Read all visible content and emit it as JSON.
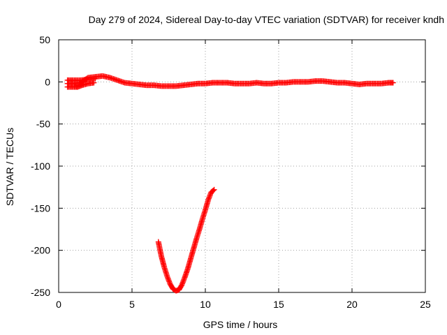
{
  "chart_data": {
    "type": "scatter",
    "title": "Day 279 of 2024, Sidereal Day-to-day VTEC variation (SDTVAR) for receiver kndh",
    "xlabel": "GPS time / hours",
    "ylabel": "SDTVAR / TECUs",
    "xlim": [
      0,
      25
    ],
    "ylim": [
      -250,
      50
    ],
    "xticks": [
      "0",
      "5",
      "10",
      "15",
      "20",
      "25"
    ],
    "yticks": [
      "50",
      "0",
      "-50",
      "-100",
      "-150",
      "-200",
      "-250"
    ],
    "grid": true,
    "marker_color": "#ff0000",
    "marker": "plus",
    "series": [
      {
        "x": [
          0.6,
          1.0,
          1.5,
          2.0,
          2.5,
          3.0,
          3.5,
          4.0,
          4.5,
          5.0,
          5.5,
          6.0,
          6.5,
          7.0,
          7.5,
          8.0,
          8.5,
          9.0,
          9.5,
          10.0,
          10.5,
          11.0,
          11.5,
          12.0,
          12.5,
          13.0,
          13.5,
          14.0,
          14.5,
          15.0,
          15.5,
          16.0,
          16.5,
          17.0,
          17.5,
          18.0,
          18.5,
          19.0,
          19.5,
          20.0,
          20.5,
          21.0,
          21.5,
          22.0,
          22.5,
          22.8
        ],
        "y": [
          -2,
          -2,
          -1,
          5,
          6,
          7,
          5,
          2,
          -1,
          -2,
          -3,
          -4,
          -4,
          -5,
          -5,
          -5,
          -4,
          -3,
          -2,
          -2,
          -1,
          -1,
          -1,
          -2,
          -2,
          -2,
          -1,
          -2,
          -2,
          -1,
          -1,
          0,
          0,
          0,
          1,
          1,
          0,
          -1,
          -1,
          -2,
          -3,
          -2,
          -2,
          -2,
          -1,
          -1
        ]
      },
      {
        "x": [
          0.6,
          1.0,
          1.3,
          1.6,
          2.0,
          2.4
        ],
        "y": [
          -6,
          -6,
          -6,
          -4,
          -2,
          -1
        ]
      },
      {
        "x": [
          0.6,
          1.0,
          1.5,
          2.0,
          2.5
        ],
        "y": [
          2,
          2,
          2,
          3,
          4
        ]
      },
      {
        "x": [
          6.8,
          7.0,
          7.2,
          7.4,
          7.6,
          7.8,
          8.0,
          8.2,
          8.4,
          8.6,
          8.8,
          9.0,
          9.2,
          9.4,
          9.6,
          9.8,
          10.0,
          10.2,
          10.4,
          10.6
        ],
        "y": [
          -190,
          -207,
          -220,
          -231,
          -240,
          -246,
          -248,
          -247,
          -241,
          -232,
          -222,
          -210,
          -198,
          -186,
          -175,
          -163,
          -152,
          -140,
          -131,
          -128
        ]
      }
    ]
  }
}
